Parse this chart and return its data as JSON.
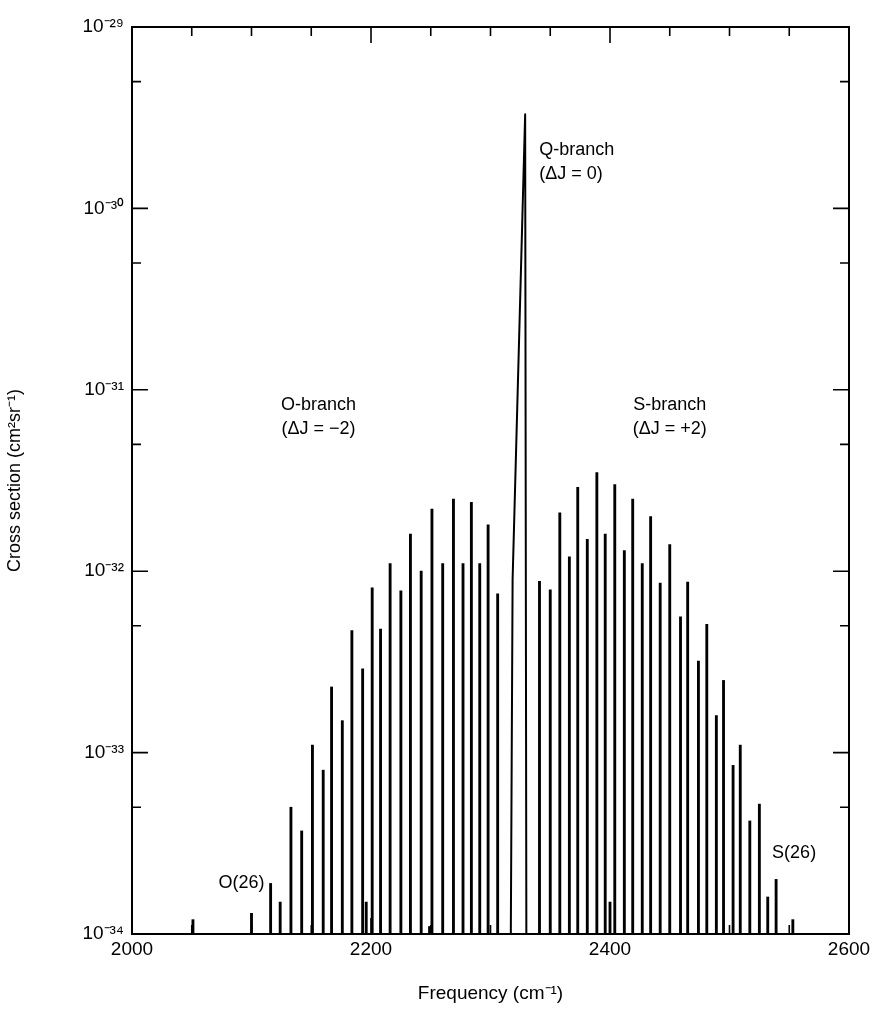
{
  "chart_data": {
    "type": "bar",
    "xlabel": "Frequency (cm⁻¹)",
    "ylabel": "Cross section (cm²sr⁻¹)",
    "log": "y",
    "grid": false,
    "legend": false,
    "xlim": [
      2000,
      2600
    ],
    "xticks": [
      2000,
      {
        "value": 2050,
        "label": null
      },
      {
        "value": 2100,
        "label": null
      },
      {
        "value": 2150,
        "label": null
      },
      2200,
      {
        "value": 2250,
        "label": null
      },
      {
        "value": 2300,
        "label": null
      },
      {
        "value": 2350,
        "label": null
      },
      2400,
      {
        "value": 2450,
        "label": null
      },
      {
        "value": 2500,
        "label": null
      },
      {
        "value": 2550,
        "label": null
      },
      2600
    ],
    "ylim": [
      1e-34,
      1e-29
    ],
    "yticks": [
      {
        "value": 1e-34,
        "label": "10⁻³⁴"
      },
      {
        "value": 5e-34,
        "label": null
      },
      {
        "value": 1e-33,
        "label": "10⁻³³"
      },
      {
        "value": 5e-33,
        "label": null
      },
      {
        "value": 1e-32,
        "label": "10⁻³²"
      },
      {
        "value": 5e-32,
        "label": null
      },
      {
        "value": 1e-31,
        "label": "10⁻³¹"
      },
      {
        "value": 5e-31,
        "label": null
      },
      {
        "value": 1e-30,
        "label": "10⁻³⁰"
      },
      {
        "value": 5e-30,
        "label": null
      },
      {
        "value": 1e-29,
        "label": "10⁻²⁹"
      }
    ],
    "series": [
      {
        "color": "#000000",
        "x": [
          2051,
          2100,
          2116,
          2124,
          2133,
          2142,
          2151,
          2160,
          2167,
          2176,
          2184,
          2193,
          2196,
          2201,
          2208,
          2216,
          2225,
          2233,
          2242,
          2249,
          2251,
          2260,
          2269,
          2277,
          2284,
          2291,
          2298,
          2306,
          2341,
          2350,
          2358,
          2366,
          2373,
          2381,
          2389,
          2396,
          2400,
          2404,
          2412,
          2419,
          2427,
          2434,
          2442,
          2450,
          2459,
          2465,
          2474,
          2481,
          2489,
          2495,
          2503,
          2509,
          2517,
          2525,
          2532,
          2539,
          2553
        ],
        "values": [
          1.2e-34,
          1.3e-34,
          1.9e-34,
          1.5e-34,
          5e-34,
          3.7e-34,
          1.1e-33,
          8e-34,
          2.3e-33,
          1.5e-33,
          4.7e-33,
          2.9e-33,
          1.5e-34,
          8.1e-33,
          4.8e-33,
          1.1e-32,
          7.8e-33,
          1.6e-32,
          1e-32,
          1.1e-34,
          2.2e-32,
          1.1e-32,
          2.5e-32,
          1.1e-32,
          2.4e-32,
          1.1e-32,
          1.8e-32,
          7.5e-33,
          8.8e-33,
          7.9e-33,
          2.1e-32,
          1.2e-32,
          2.9e-32,
          1.5e-32,
          3.5e-32,
          1.6e-32,
          1.5e-34,
          3e-32,
          1.3e-32,
          2.5e-32,
          1.1e-32,
          2e-32,
          8.6e-33,
          1.4e-32,
          5.6e-33,
          8.7e-33,
          3.2e-33,
          5.1e-33,
          1.6e-33,
          2.5e-33,
          8.5e-34,
          1.1e-33,
          4.2e-34,
          5.2e-34,
          1.6e-34,
          2e-34,
          1.2e-34
        ]
      },
      {
        "type": "line",
        "color": "#000000",
        "x": [
          2317,
          2318.5,
          2329,
          2330
        ],
        "values": [
          1e-34,
          9e-33,
          3.3e-30,
          1e-34
        ]
      }
    ],
    "annotations": [
      {
        "text": "Q-branch\n(ΔJ = 0)",
        "x": 2329,
        "y": 3.3e-30
      },
      "O-branch\n(ΔJ = −2)",
      "S-branch\n(ΔJ = +2)",
      {
        "text": "O(26)",
        "x": 2116,
        "y": 1.9e-34
      },
      {
        "text": "S(26)",
        "x": 2539,
        "y": 2e-34
      }
    ]
  }
}
